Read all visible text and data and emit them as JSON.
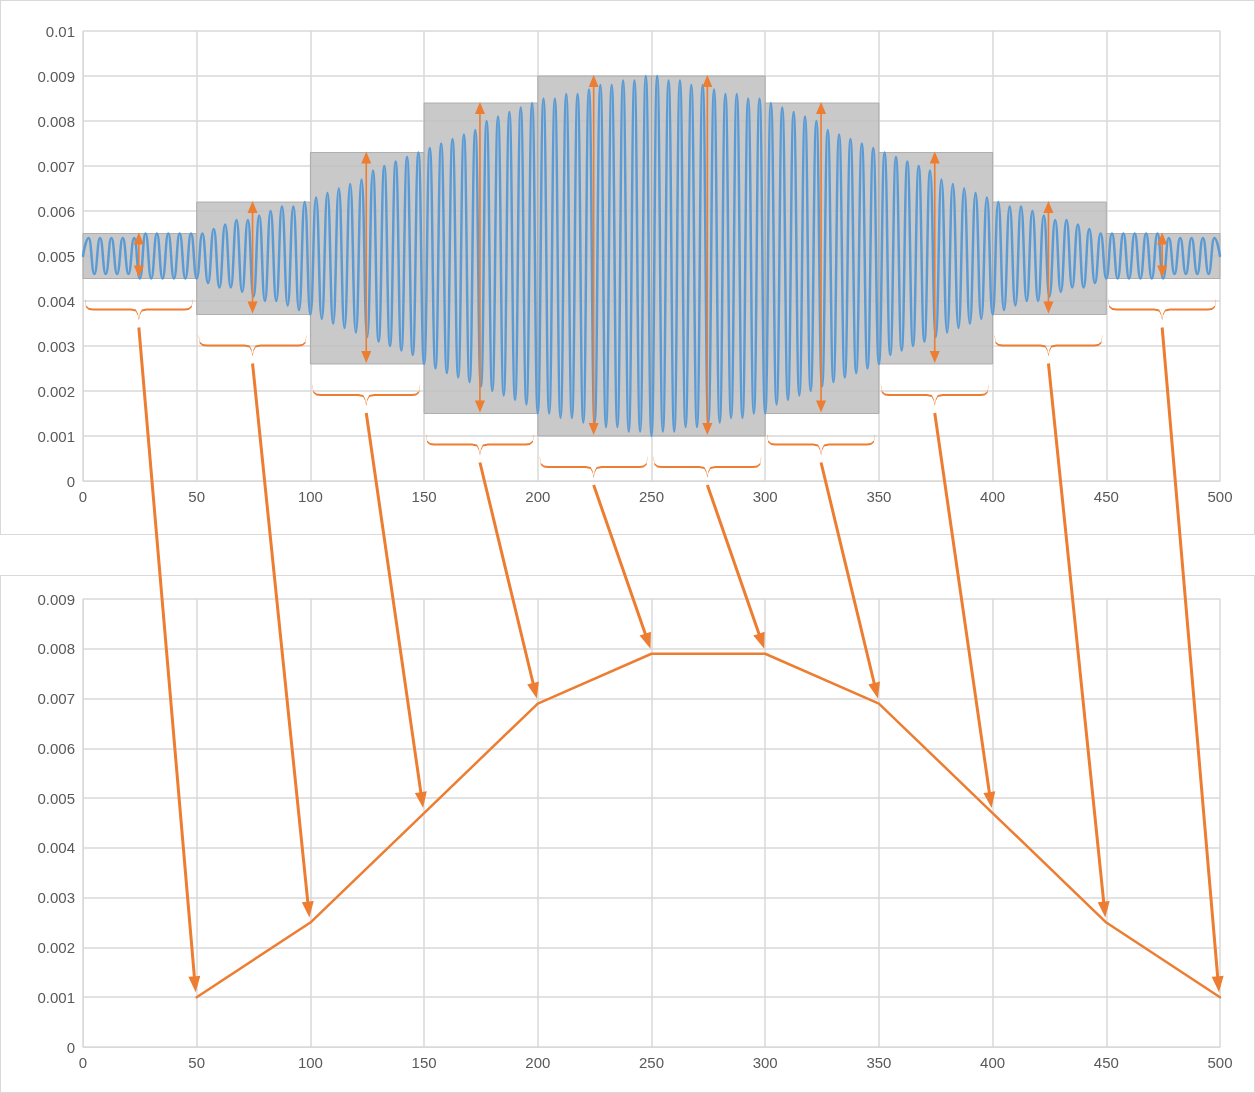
{
  "chart_data": [
    {
      "type": "line",
      "xlim": [
        0,
        500
      ],
      "ylim": [
        0,
        0.01
      ],
      "xticks": [
        0,
        50,
        100,
        150,
        200,
        250,
        300,
        350,
        400,
        450,
        500
      ],
      "yticks": [
        0,
        0.001,
        0.002,
        0.003,
        0.004,
        0.005,
        0.006,
        0.007,
        0.008,
        0.009,
        0.01
      ],
      "grid": true,
      "marker": "none",
      "x": [
        0,
        2.5,
        5,
        7.5,
        10,
        12.5,
        15,
        17.5,
        20,
        22.5,
        25,
        27.5,
        30,
        32.5,
        35,
        37.5,
        40,
        42.5,
        45,
        47.5,
        50,
        52.5,
        55,
        57.5,
        60,
        62.5,
        65,
        67.5,
        70,
        72.5,
        75,
        77.5,
        80,
        82.5,
        85,
        87.5,
        90,
        92.5,
        95,
        97.5,
        100,
        102.5,
        105,
        107.5,
        110,
        112.5,
        115,
        117.5,
        120,
        122.5,
        125,
        127.5,
        130,
        132.5,
        135,
        137.5,
        140,
        142.5,
        145,
        147.5,
        150,
        152.5,
        155,
        157.5,
        160,
        162.5,
        165,
        167.5,
        170,
        172.5,
        175,
        177.5,
        180,
        182.5,
        185,
        187.5,
        190,
        192.5,
        195,
        197.5,
        200,
        202.5,
        205,
        207.5,
        210,
        212.5,
        215,
        217.5,
        220,
        222.5,
        225,
        227.5,
        230,
        232.5,
        235,
        237.5,
        240,
        242.5,
        245,
        247.5,
        250,
        252.5,
        255,
        257.5,
        260,
        262.5,
        265,
        267.5,
        270,
        272.5,
        275,
        277.5,
        280,
        282.5,
        285,
        287.5,
        290,
        292.5,
        295,
        297.5,
        300,
        302.5,
        305,
        307.5,
        310,
        312.5,
        315,
        317.5,
        320,
        322.5,
        325,
        327.5,
        330,
        332.5,
        335,
        337.5,
        340,
        342.5,
        345,
        347.5,
        350,
        352.5,
        355,
        357.5,
        360,
        362.5,
        365,
        367.5,
        370,
        372.5,
        375,
        377.5,
        380,
        382.5,
        385,
        387.5,
        390,
        392.5,
        395,
        397.5,
        400,
        402.5,
        405,
        407.5,
        410,
        412.5,
        415,
        417.5,
        420,
        422.5,
        425,
        427.5,
        430,
        432.5,
        435,
        437.5,
        440,
        442.5,
        445,
        447.5,
        450,
        452.5,
        455,
        457.5,
        460,
        462.5,
        465,
        467.5,
        470,
        472.5,
        475,
        477.5,
        480,
        482.5,
        485,
        487.5,
        490,
        492.5,
        495,
        497.5,
        500
      ],
      "series": [
        {
          "type": "bar",
          "color": "#bfbfbf",
          "x": [
            25,
            75,
            125,
            175,
            225,
            275,
            325,
            375,
            425,
            475
          ],
          "base": [
            0.0045,
            0.0037,
            0.0026,
            0.0015,
            0.001,
            0.001,
            0.0015,
            0.0026,
            0.0037,
            0.0045
          ],
          "values": [
            0.001,
            0.0025,
            0.0047,
            0.0069,
            0.008,
            0.008,
            0.0069,
            0.0047,
            0.0025,
            0.001
          ]
        },
        {
          "color": "#5b9bd5",
          "values": [
            0.005,
            0.0054,
            0.0046,
            0.0054,
            0.0046,
            0.0054,
            0.0046,
            0.0054,
            0.0046,
            0.0054,
            0.0045,
            0.0055,
            0.0045,
            0.0055,
            0.0045,
            0.0055,
            0.0045,
            0.0055,
            0.0045,
            0.0055,
            0.0045,
            0.0055,
            0.0044,
            0.0056,
            0.0043,
            0.0057,
            0.0043,
            0.0058,
            0.0042,
            0.0058,
            0.0041,
            0.0059,
            0.004,
            0.006,
            0.004,
            0.0061,
            0.0039,
            0.0061,
            0.0038,
            0.0062,
            0.0037,
            0.0063,
            0.0036,
            0.0064,
            0.0035,
            0.0065,
            0.0034,
            0.0066,
            0.0033,
            0.0067,
            0.0032,
            0.0069,
            0.0031,
            0.007,
            0.003,
            0.0071,
            0.0029,
            0.0072,
            0.0028,
            0.0073,
            0.0026,
            0.0074,
            0.0025,
            0.0075,
            0.0024,
            0.0076,
            0.0023,
            0.0077,
            0.0022,
            0.0078,
            0.0021,
            0.008,
            0.002,
            0.0081,
            0.0019,
            0.0082,
            0.0018,
            0.0083,
            0.0017,
            0.0084,
            0.0015,
            0.0085,
            0.0015,
            0.0085,
            0.0014,
            0.0086,
            0.0014,
            0.0086,
            0.0013,
            0.0087,
            0.0013,
            0.0088,
            0.0012,
            0.0088,
            0.0012,
            0.0089,
            0.0011,
            0.0089,
            0.0011,
            0.009,
            0.001,
            0.009,
            0.0011,
            0.0089,
            0.0011,
            0.0089,
            0.0012,
            0.0088,
            0.0012,
            0.0088,
            0.0013,
            0.0087,
            0.0013,
            0.0086,
            0.0014,
            0.0086,
            0.0014,
            0.0085,
            0.0015,
            0.0085,
            0.0015,
            0.0084,
            0.0017,
            0.0083,
            0.0018,
            0.0082,
            0.0019,
            0.0081,
            0.002,
            0.008,
            0.0021,
            0.0078,
            0.0022,
            0.0077,
            0.0023,
            0.0076,
            0.0024,
            0.0075,
            0.0025,
            0.0074,
            0.0026,
            0.0073,
            0.0028,
            0.0072,
            0.0029,
            0.0071,
            0.003,
            0.007,
            0.0031,
            0.0069,
            0.0032,
            0.0067,
            0.0033,
            0.0066,
            0.0034,
            0.0065,
            0.0035,
            0.0064,
            0.0036,
            0.0063,
            0.0037,
            0.0062,
            0.0038,
            0.0061,
            0.0039,
            0.0061,
            0.004,
            0.006,
            0.004,
            0.0059,
            0.0041,
            0.0058,
            0.0042,
            0.0058,
            0.0043,
            0.0057,
            0.0043,
            0.0056,
            0.0044,
            0.0055,
            0.0045,
            0.0055,
            0.0045,
            0.0055,
            0.0045,
            0.0055,
            0.0045,
            0.0055,
            0.0045,
            0.0055,
            0.0045,
            0.0054,
            0.0046,
            0.0054,
            0.0046,
            0.0054,
            0.0046,
            0.0054,
            0.0046,
            0.0054,
            0.005
          ]
        }
      ]
    },
    {
      "type": "line",
      "xlim": [
        0,
        500
      ],
      "ylim": [
        0,
        0.009
      ],
      "xticks": [
        0,
        50,
        100,
        150,
        200,
        250,
        300,
        350,
        400,
        450,
        500
      ],
      "yticks": [
        0,
        0.001,
        0.002,
        0.003,
        0.004,
        0.005,
        0.006,
        0.007,
        0.008,
        0.009
      ],
      "grid": true,
      "marker": "none",
      "x": [
        50,
        100,
        150,
        200,
        250,
        300,
        350,
        400,
        450,
        500
      ],
      "series": [
        {
          "color": "#ed7d31",
          "values": [
            0.001,
            0.0025,
            0.0047,
            0.0069,
            0.0079,
            0.0079,
            0.0069,
            0.0047,
            0.0025,
            0.001
          ]
        }
      ]
    }
  ]
}
